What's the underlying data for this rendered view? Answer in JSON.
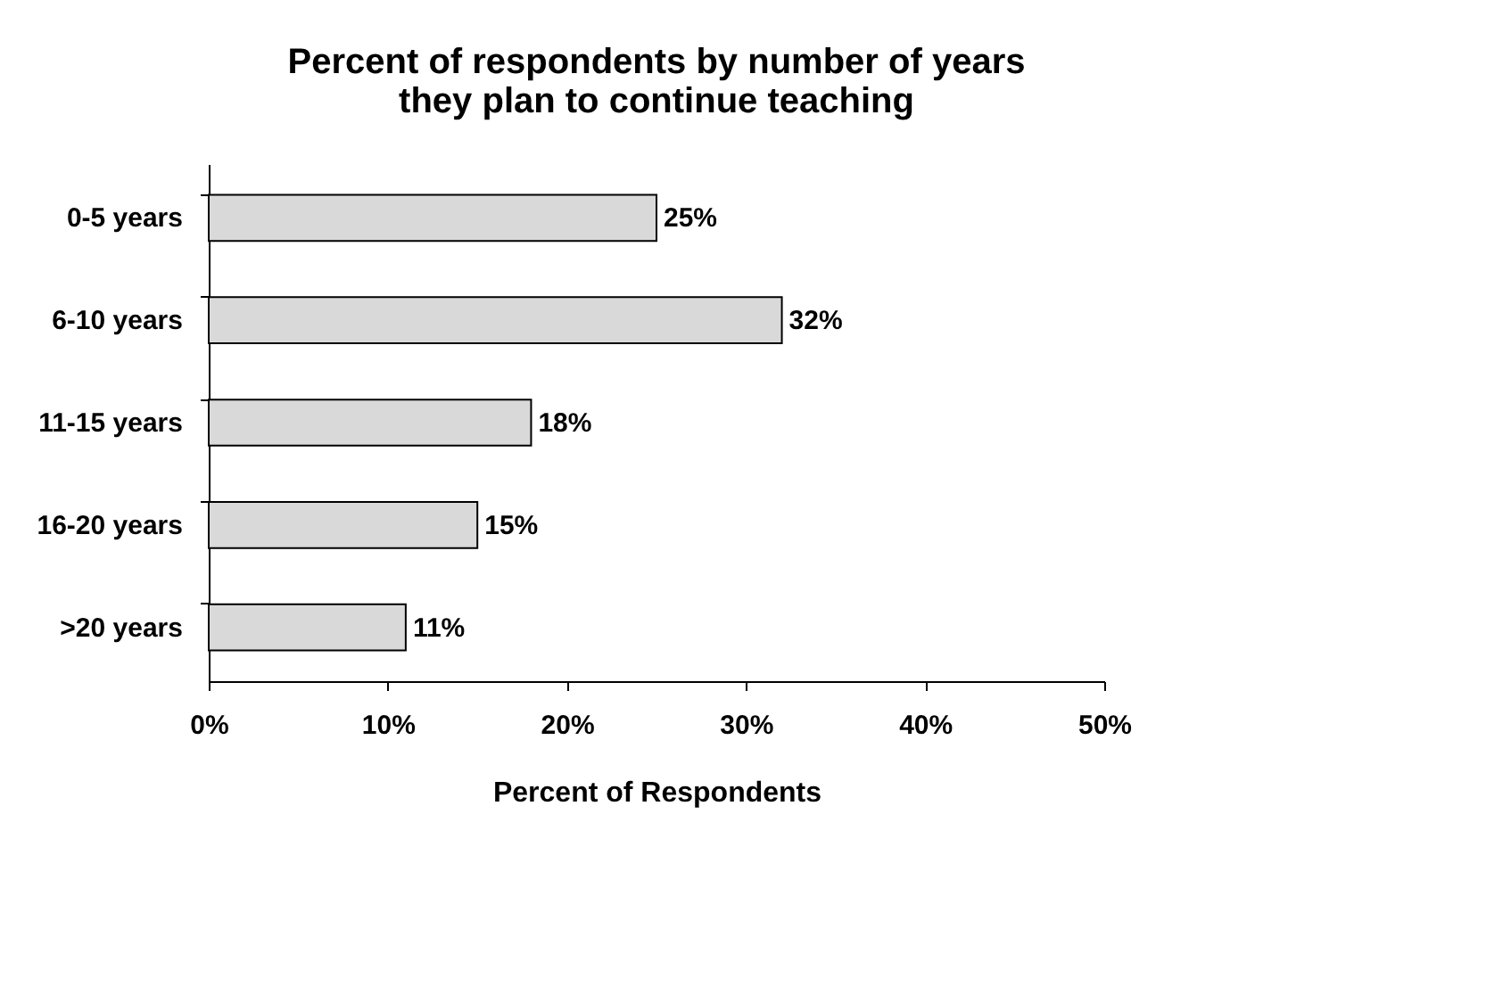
{
  "chart_data": {
    "type": "bar",
    "orientation": "horizontal",
    "title": "Percent of respondents by number of years they plan to continue teaching",
    "xlabel": "Percent of Respondents",
    "categories": [
      "0-5 years",
      "6-10 years",
      "11-15 years",
      "16-20 years",
      ">20 years"
    ],
    "values": [
      25,
      32,
      18,
      15,
      11
    ],
    "value_labels": [
      "25%",
      "32%",
      "18%",
      "15%",
      "11%"
    ],
    "color": "#d9d9d9",
    "xlim": [
      0,
      50
    ],
    "xticks": [
      {
        "value": 0,
        "label": "0%"
      },
      {
        "value": 10,
        "label": "10%"
      },
      {
        "value": 20,
        "label": "20%"
      },
      {
        "value": 30,
        "label": "30%"
      },
      {
        "value": 40,
        "label": "40%"
      },
      {
        "value": 50,
        "label": "50%"
      }
    ],
    "grid": false
  }
}
